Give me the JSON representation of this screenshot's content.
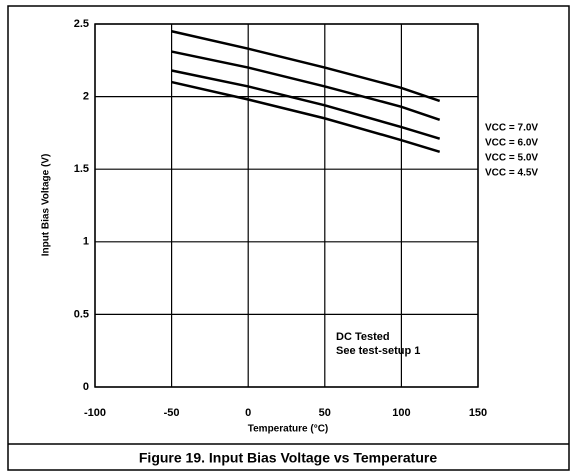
{
  "chart_data": {
    "type": "line",
    "title": "Figure 19.  Input Bias Voltage vs Temperature",
    "x_label": "Temperature (°C)",
    "y_label": "Input Bias Voltage (V)",
    "x": [
      -50,
      0,
      50,
      100,
      125
    ],
    "series": [
      {
        "name": "VCC = 7.0V",
        "color": "#000000",
        "values": [
          2.45,
          2.33,
          2.2,
          2.06,
          1.97
        ]
      },
      {
        "name": "VCC = 6.0V",
        "color": "#000000",
        "values": [
          2.31,
          2.2,
          2.07,
          1.93,
          1.84
        ]
      },
      {
        "name": "VCC = 5.0V",
        "color": "#000000",
        "values": [
          2.18,
          2.07,
          1.94,
          1.79,
          1.71
        ]
      },
      {
        "name": "VCC = 4.5V",
        "color": "#000000",
        "values": [
          2.1,
          1.98,
          1.85,
          1.7,
          1.62
        ]
      }
    ],
    "annotations": [
      "DC Tested",
      "See test-setup 1"
    ],
    "xlim": [
      -100,
      150
    ],
    "xticks": [
      -100,
      -50,
      0,
      50,
      100,
      150
    ],
    "ylim": [
      0,
      2.5
    ],
    "yticks": [
      0,
      0.5,
      1,
      1.5,
      2,
      2.5
    ],
    "grid": true
  }
}
